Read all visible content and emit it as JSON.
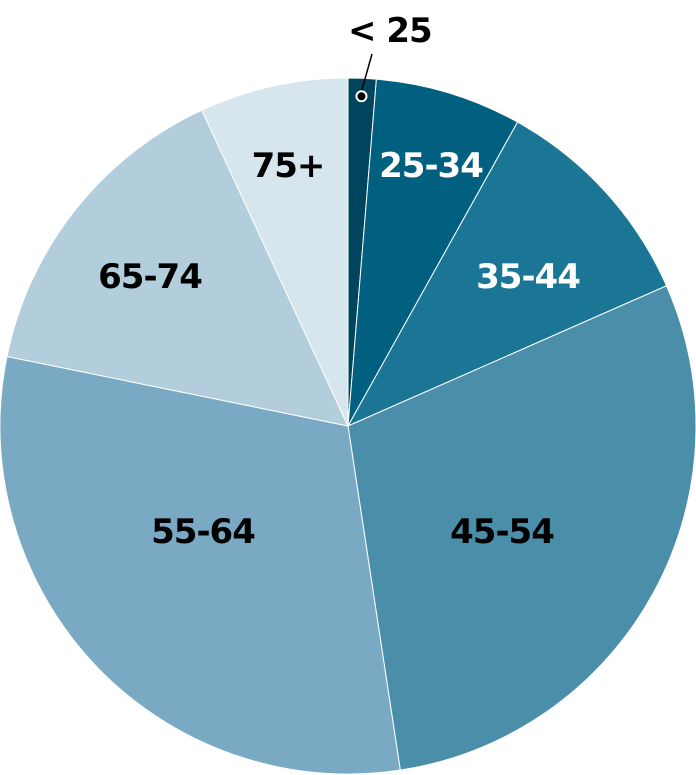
{
  "chart_data": {
    "type": "pie",
    "title": "",
    "start_angle_deg": 0,
    "direction": "clockwise",
    "slices": [
      {
        "label": "< 25",
        "value": 1.3,
        "color": "#00445e",
        "label_color": "#000000"
      },
      {
        "label": "25-34",
        "value": 6.8,
        "color": "#015f7f",
        "label_color": "#ffffff"
      },
      {
        "label": "35-44",
        "value": 10.3,
        "color": "#1b7696",
        "label_color": "#ffffff"
      },
      {
        "label": "45-54",
        "value": 29.2,
        "color": "#4b8ea9",
        "label_color": "#000000"
      },
      {
        "label": "55-64",
        "value": 30.6,
        "color": "#7aaac3",
        "label_color": "#000000"
      },
      {
        "label": "65-74",
        "value": 14.9,
        "color": "#b2cddc",
        "label_color": "#000000"
      },
      {
        "label": "75+",
        "value": 6.9,
        "color": "#d6e5ee",
        "label_color": "#000000"
      }
    ]
  }
}
